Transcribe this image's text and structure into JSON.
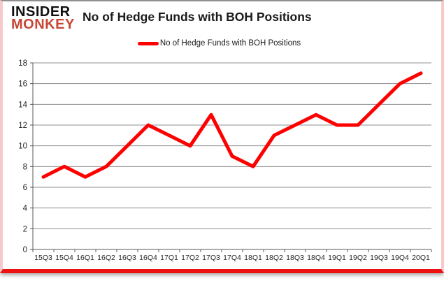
{
  "brand": {
    "line1": "INSIDER",
    "line2": "MONKEY"
  },
  "title": "No of Hedge Funds with BOH Positions",
  "legend": {
    "label": "No of Hedge Funds with BOH Positions",
    "color": "#ff0000"
  },
  "chart_data": {
    "type": "line",
    "title": "No of Hedge Funds with BOH Positions",
    "categories": [
      "15Q3",
      "15Q4",
      "16Q1",
      "16Q2",
      "16Q3",
      "16Q4",
      "17Q1",
      "17Q2",
      "17Q3",
      "17Q4",
      "18Q1",
      "18Q2",
      "18Q3",
      "18Q4",
      "19Q1",
      "19Q2",
      "19Q3",
      "19Q4",
      "20Q1"
    ],
    "series": [
      {
        "name": "No of Hedge Funds with BOH Positions",
        "color": "#ff0000",
        "values": [
          7,
          8,
          7,
          8,
          10,
          12,
          11,
          10,
          13,
          9,
          8,
          11,
          12,
          13,
          12,
          12,
          14,
          16,
          17
        ]
      }
    ],
    "xlabel": "",
    "ylabel": "",
    "ylim": [
      0,
      18
    ],
    "ytick_step": 2,
    "yticks": [
      0,
      2,
      4,
      6,
      8,
      10,
      12,
      14,
      16,
      18
    ],
    "grid": true,
    "legend_position": "top-center"
  },
  "colors": {
    "line_red": "#ff0000",
    "brand_red": "#c74634",
    "frame_pink": "#f6caca",
    "bottom_bar_red": "#ec1212",
    "grid_gray": "#8f8f8f",
    "axis_gray": "#595959",
    "text_dark": "#262626"
  }
}
